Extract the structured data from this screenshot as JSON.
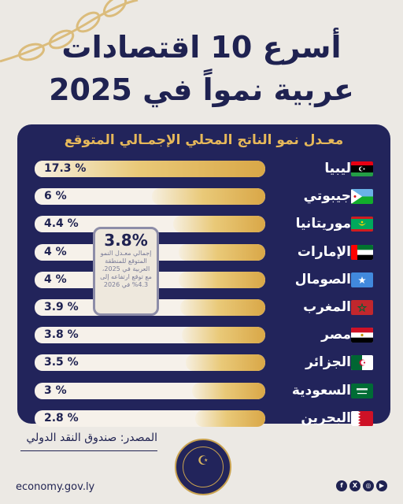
{
  "title_line1": "أسرع 10 اقتصادات",
  "title_line2": "عربية نمواً في 2025",
  "subtitle": "معـدل نمو الناتج المحلي الإجمـالي المتوقع",
  "callout": {
    "value": "3.8%",
    "text": "إجمالي معـدل النمو المتوقع للمنطقة العربية في 2025، مع توقع ارتفاعه إلى 4.3% في 2026"
  },
  "source": "المصدر: صندوق النقد الدولي",
  "website": "economy.gov.ly",
  "socials": [
    "facebook-icon",
    "x-icon",
    "instagram-icon",
    "youtube-icon"
  ],
  "colors": {
    "navy": "#22245b",
    "gold": "#e6b85a",
    "track": "#f6f1ea"
  },
  "chart_data": {
    "type": "bar",
    "title": "معـدل نمو الناتج المحلي الإجمـالي المتوقع",
    "categories": [
      "ليبيا",
      "جيبوتي",
      "موريتانيا",
      "الإمارات",
      "الصومال",
      "المغرب",
      "مصر",
      "الجزائر",
      "السعودية",
      "البحرين"
    ],
    "values": [
      17.3,
      6,
      4.4,
      4,
      4,
      3.9,
      3.8,
      3.5,
      3,
      2.8
    ],
    "labels": [
      "17.3 %",
      "6 %",
      "4.4 %",
      "4 %",
      "4 %",
      "3.9 %",
      "3.8 %",
      "3.5 %",
      "3 %",
      "2.8 %"
    ],
    "flags": [
      "libya-flag",
      "djibouti-flag",
      "mauritania-flag",
      "uae-flag",
      "somalia-flag",
      "morocco-flag",
      "egypt-flag",
      "algeria-flag",
      "saudi-flag",
      "bahrain-flag"
    ],
    "orientation": "horizontal",
    "xlim": [
      0,
      17.3
    ]
  }
}
